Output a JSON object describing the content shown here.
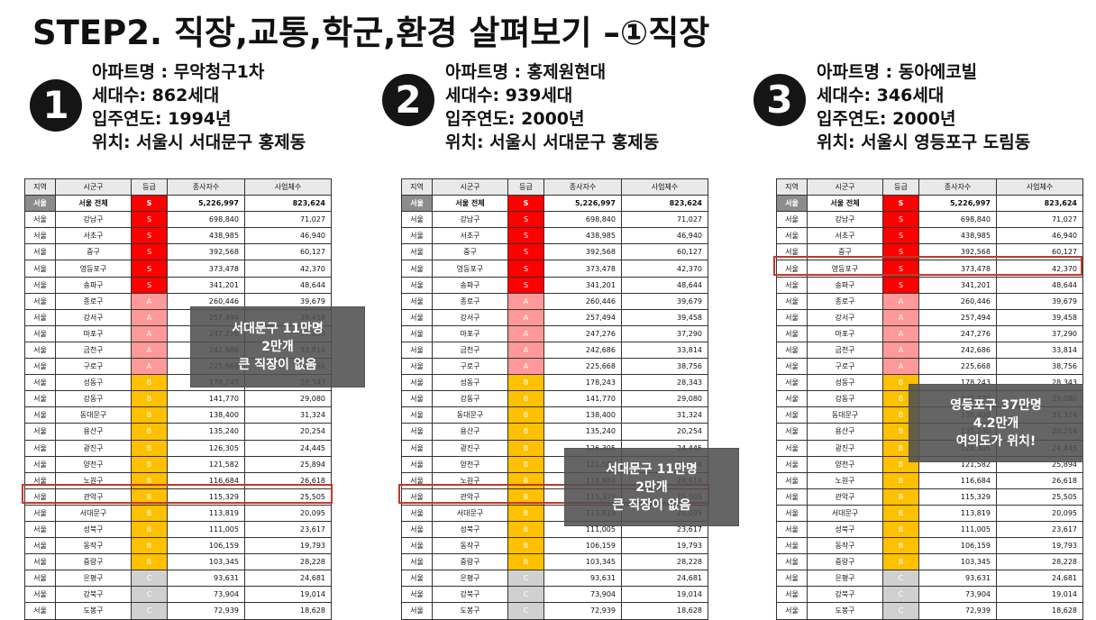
{
  "title": "STEP2. 직장,교통,학군,환경 살펴보기 –①직장",
  "apartments": [
    {
      "num": "1",
      "name": "아파트명 : 무악청구1차",
      "households": "세대수: 862세대",
      "year": "입주연도: 1994년",
      "location": "위치: 서울시 서대문구 홍제동"
    },
    {
      "num": "2",
      "name": "아파트명 : 홍제원현대",
      "households": "세대수: 939세대",
      "year": "입주연도: 2000년",
      "location": "위치: 서울시 서대문구 홍제동"
    },
    {
      "num": "3",
      "name": "아파트명 : 동아에코빌",
      "households": "세대수: 346세대",
      "year": "입주연도: 2000년",
      "location": "위치: 서울시 영등포구 도림동"
    }
  ],
  "table": {
    "headers": [
      "지역",
      "시군구",
      "등급",
      "종사자수",
      "사업체수"
    ],
    "total": [
      "서울",
      "서울 전체",
      "S",
      "5,226,997",
      "823,624"
    ],
    "rows": [
      [
        "서울",
        "강남구",
        "S",
        "698,840",
        "71,027"
      ],
      [
        "서울",
        "서초구",
        "S",
        "438,985",
        "46,940"
      ],
      [
        "서울",
        "중구",
        "S",
        "392,568",
        "60,127"
      ],
      [
        "서울",
        "영등포구",
        "S",
        "373,478",
        "42,370"
      ],
      [
        "서울",
        "송파구",
        "S",
        "341,201",
        "48,644"
      ],
      [
        "서울",
        "종로구",
        "A",
        "260,446",
        "39,679"
      ],
      [
        "서울",
        "강서구",
        "A",
        "257,494",
        "39,458"
      ],
      [
        "서울",
        "마포구",
        "A",
        "247,276",
        "37,290"
      ],
      [
        "서울",
        "금천구",
        "A",
        "242,686",
        "33,814"
      ],
      [
        "서울",
        "구로구",
        "A",
        "225,668",
        "38,756"
      ],
      [
        "서울",
        "성동구",
        "B",
        "178,243",
        "28,343"
      ],
      [
        "서울",
        "강동구",
        "B",
        "141,770",
        "29,080"
      ],
      [
        "서울",
        "동대문구",
        "B",
        "138,400",
        "31,324"
      ],
      [
        "서울",
        "용산구",
        "B",
        "135,240",
        "20,254"
      ],
      [
        "서울",
        "광진구",
        "B",
        "126,305",
        "24,445"
      ],
      [
        "서울",
        "양천구",
        "B",
        "121,582",
        "25,894"
      ],
      [
        "서울",
        "노원구",
        "B",
        "116,684",
        "26,618"
      ],
      [
        "서울",
        "관악구",
        "B",
        "115,329",
        "25,505"
      ],
      [
        "서울",
        "서대문구",
        "B",
        "113,819",
        "20,095"
      ],
      [
        "서울",
        "성북구",
        "B",
        "111,005",
        "23,617"
      ],
      [
        "서울",
        "동작구",
        "B",
        "106,159",
        "19,793"
      ],
      [
        "서울",
        "중랑구",
        "B",
        "103,345",
        "28,228"
      ],
      [
        "서울",
        "은평구",
        "C",
        "93,631",
        "24,681"
      ],
      [
        "서울",
        "강북구",
        "C",
        "73,904",
        "19,014"
      ],
      [
        "서울",
        "도봉구",
        "C",
        "72,939",
        "18,628"
      ]
    ]
  },
  "callouts": [
    {
      "line1": "서대문구 11만명",
      "line2": "2만개",
      "line3": "큰 직장이 없음"
    },
    {
      "line1": "서대문구 11만명",
      "line2": "2만개",
      "line3": "큰 직장이 없음"
    },
    {
      "line1": "영등포구 37만명",
      "line2": "4.2만개",
      "line3": "여의도가 위치!"
    }
  ],
  "colors": {
    "S": "#ff0000",
    "A": "#ff9999",
    "B": "#ffc000",
    "C": "#d0d0d0",
    "highlight": "#c0392b"
  }
}
